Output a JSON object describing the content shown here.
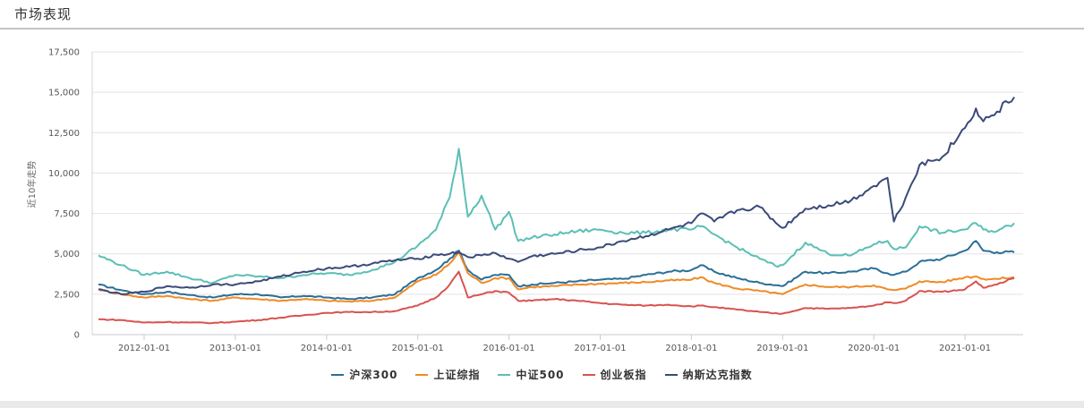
{
  "header": {
    "title": "市场表现"
  },
  "chart_data": {
    "type": "line",
    "title": "市场表现",
    "ylabel": "近10年走势",
    "xlabel": "",
    "ylim": [
      0,
      17500
    ],
    "yticks": [
      0,
      2500,
      5000,
      7500,
      10000,
      12500,
      15000,
      17500
    ],
    "ytick_labels": [
      "0",
      "2,500",
      "5,000",
      "7,500",
      "10,000",
      "12,500",
      "15,000",
      "17,500"
    ],
    "xticks": [
      "2012-01-01",
      "2013-01-01",
      "2014-01-01",
      "2015-01-01",
      "2016-01-01",
      "2017-01-01",
      "2018-01-01",
      "2019-01-01",
      "2020-01-01",
      "2021-01-01"
    ],
    "grid": true,
    "legend_position": "bottom",
    "x": [
      2011.5,
      2011.75,
      2012.0,
      2012.25,
      2012.5,
      2012.75,
      2013.0,
      2013.25,
      2013.5,
      2013.75,
      2014.0,
      2014.25,
      2014.5,
      2014.75,
      2015.0,
      2015.2,
      2015.35,
      2015.45,
      2015.55,
      2015.7,
      2015.85,
      2016.0,
      2016.1,
      2016.25,
      2016.5,
      2016.75,
      2017.0,
      2017.25,
      2017.5,
      2017.75,
      2018.0,
      2018.1,
      2018.25,
      2018.5,
      2018.75,
      2018.95,
      2019.0,
      2019.25,
      2019.5,
      2019.75,
      2020.0,
      2020.15,
      2020.22,
      2020.35,
      2020.5,
      2020.75,
      2021.0,
      2021.12,
      2021.2,
      2021.35,
      2021.54
    ],
    "series": [
      {
        "name": "沪深300",
        "color": "#2a6f97",
        "values": [
          3100,
          2750,
          2500,
          2650,
          2450,
          2300,
          2500,
          2500,
          2300,
          2400,
          2300,
          2200,
          2300,
          2500,
          3500,
          4000,
          4700,
          5200,
          4000,
          3400,
          3700,
          3700,
          3000,
          3100,
          3200,
          3300,
          3400,
          3450,
          3700,
          3900,
          4000,
          4300,
          3900,
          3500,
          3200,
          3050,
          3000,
          3900,
          3800,
          3900,
          4100,
          3800,
          3700,
          3900,
          4500,
          4700,
          5200,
          5800,
          5200,
          5100,
          5100
        ]
      },
      {
        "name": "上证综指",
        "color": "#f08a24",
        "values": [
          2800,
          2500,
          2300,
          2400,
          2200,
          2100,
          2300,
          2200,
          2100,
          2200,
          2100,
          2050,
          2100,
          2300,
          3300,
          3700,
          4400,
          5100,
          3800,
          3200,
          3500,
          3500,
          2800,
          2950,
          3000,
          3100,
          3150,
          3200,
          3250,
          3350,
          3400,
          3550,
          3200,
          2850,
          2700,
          2550,
          2500,
          3100,
          2950,
          2950,
          3050,
          2800,
          2750,
          2850,
          3300,
          3250,
          3550,
          3600,
          3450,
          3450,
          3550
        ]
      },
      {
        "name": "中证500",
        "color": "#5bbfb5",
        "values": [
          4900,
          4300,
          3700,
          3900,
          3500,
          3200,
          3700,
          3600,
          3500,
          3700,
          3800,
          3700,
          4000,
          4500,
          5500,
          6500,
          8500,
          11500,
          7300,
          8600,
          6500,
          7600,
          5800,
          6000,
          6200,
          6400,
          6500,
          6300,
          6300,
          6500,
          6500,
          6700,
          6200,
          5400,
          4700,
          4200,
          4300,
          5700,
          5000,
          4900,
          5600,
          5800,
          5300,
          5400,
          6700,
          6300,
          6500,
          6900,
          6500,
          6400,
          6900
        ]
      },
      {
        "name": "创业板指",
        "color": "#d9534f",
        "values": [
          950,
          900,
          750,
          780,
          750,
          720,
          800,
          900,
          1050,
          1200,
          1350,
          1400,
          1400,
          1450,
          1800,
          2300,
          3100,
          3900,
          2300,
          2500,
          2700,
          2600,
          2100,
          2100,
          2200,
          2100,
          1950,
          1850,
          1800,
          1850,
          1750,
          1800,
          1700,
          1550,
          1400,
          1300,
          1300,
          1650,
          1600,
          1650,
          1800,
          2000,
          1950,
          2100,
          2700,
          2650,
          2800,
          3300,
          2900,
          3100,
          3500
        ]
      },
      {
        "name": "纳斯达克指数",
        "color": "#3b4a7a",
        "values": [
          2800,
          2500,
          2650,
          3000,
          2900,
          3100,
          3100,
          3300,
          3600,
          3900,
          4100,
          4200,
          4400,
          4600,
          4700,
          4950,
          5000,
          5100,
          4800,
          4900,
          5050,
          4700,
          4500,
          4850,
          5000,
          5200,
          5400,
          5800,
          6100,
          6500,
          6900,
          7500,
          7000,
          7700,
          7900,
          6800,
          6600,
          7800,
          8000,
          8300,
          9200,
          9700,
          7000,
          8500,
          10500,
          11000,
          12800,
          14000,
          13200,
          13800,
          14700
        ]
      }
    ]
  },
  "legend": [
    {
      "label": "沪深300",
      "color": "#2a6f97"
    },
    {
      "label": "上证综指",
      "color": "#f08a24"
    },
    {
      "label": "中证500",
      "color": "#5bbfb5"
    },
    {
      "label": "创业板指",
      "color": "#d9534f"
    },
    {
      "label": "纳斯达克指数",
      "color": "#3b4a7a"
    }
  ]
}
